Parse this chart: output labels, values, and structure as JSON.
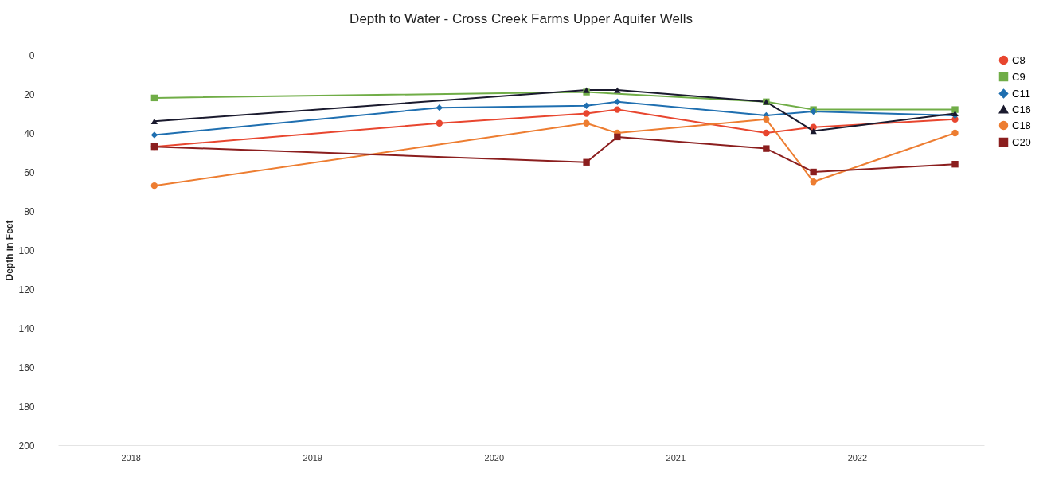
{
  "chart_data": {
    "type": "line",
    "title": "Depth to Water - Cross Creek Farms Upper Aquifer Wells",
    "ylabel": "Depth in Feet",
    "series": [
      {
        "name": "C8",
        "color": "#e8462f",
        "marker": "circle",
        "x": [
          2018.13,
          2019.7,
          2020.51,
          2020.68,
          2021.5,
          2021.76,
          2022.54
        ],
        "values": [
          47,
          35,
          30,
          28,
          40,
          37,
          33
        ]
      },
      {
        "name": "C9",
        "color": "#70ad47",
        "marker": "square",
        "x": [
          2018.13,
          2020.51,
          2021.5,
          2021.76,
          2022.54
        ],
        "values": [
          22,
          19,
          24,
          28,
          28
        ]
      },
      {
        "name": "C11",
        "color": "#1f6fb0",
        "marker": "diamond",
        "x": [
          2018.13,
          2019.7,
          2020.51,
          2020.68,
          2021.5,
          2021.76,
          2022.54
        ],
        "values": [
          41,
          27,
          26,
          24,
          31,
          29,
          31
        ]
      },
      {
        "name": "C16",
        "color": "#1a1a2e",
        "marker": "triangle",
        "x": [
          2018.13,
          2020.51,
          2020.68,
          2021.5,
          2021.76,
          2022.54
        ],
        "values": [
          34,
          18,
          18,
          24,
          39,
          30
        ]
      },
      {
        "name": "C18",
        "color": "#ed7d31",
        "marker": "circle",
        "x": [
          2018.13,
          2020.51,
          2020.68,
          2021.5,
          2021.76,
          2022.54
        ],
        "values": [
          67,
          35,
          40,
          33,
          65,
          40
        ]
      },
      {
        "name": "C20",
        "color": "#8b1e1e",
        "marker": "square",
        "x": [
          2018.13,
          2020.51,
          2020.68,
          2021.5,
          2021.76,
          2022.54
        ],
        "values": [
          47,
          55,
          42,
          48,
          60,
          56
        ]
      }
    ],
    "xlim": [
      2017.6,
      2022.7
    ],
    "xticks": [
      2018,
      2019,
      2020,
      2021,
      2022
    ],
    "ylim": [
      200,
      0
    ],
    "yticks": [
      0,
      20,
      40,
      60,
      80,
      100,
      120,
      140,
      160,
      180,
      200
    ],
    "grid": false,
    "legend": "right",
    "line_style": "solid"
  }
}
